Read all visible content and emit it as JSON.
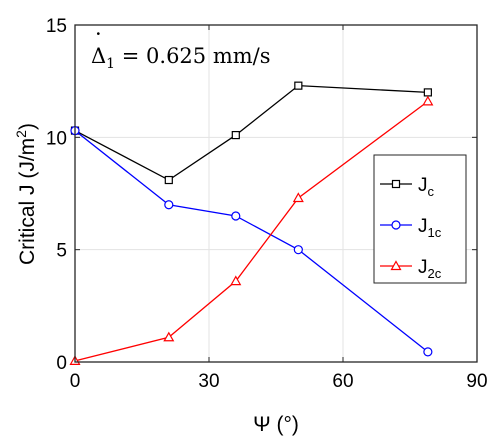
{
  "chart_data": {
    "type": "line",
    "annotation": {
      "symbol": "Δ",
      "subscript": "1",
      "text": " = 0.625 mm/s"
    },
    "xlabel": "Ψ (°)",
    "ylabel": {
      "main": "Critical J (J/m",
      "sup": "2",
      "close": ")"
    },
    "xlim": [
      0,
      90
    ],
    "ylim": [
      0,
      15
    ],
    "xticks": [
      "0",
      "30",
      "60",
      "90"
    ],
    "yticks": [
      "0",
      "5",
      "10",
      "15"
    ],
    "grid": true,
    "legend_position": "right",
    "x": [
      0,
      21,
      36,
      50,
      79
    ],
    "series": [
      {
        "name_main": "J",
        "name_sub": "c",
        "marker": "square",
        "color": "#000000",
        "values": [
          10.3,
          8.1,
          10.1,
          12.3,
          12.0
        ]
      },
      {
        "name_main": "J",
        "name_sub": "1c",
        "marker": "circle",
        "color": "#0000ff",
        "values": [
          10.3,
          7.0,
          6.5,
          5.0,
          0.45
        ]
      },
      {
        "name_main": "J",
        "name_sub": "2c",
        "marker": "triangle",
        "color": "#ff0000",
        "values": [
          0.05,
          1.1,
          3.6,
          7.3,
          11.6
        ]
      }
    ]
  }
}
